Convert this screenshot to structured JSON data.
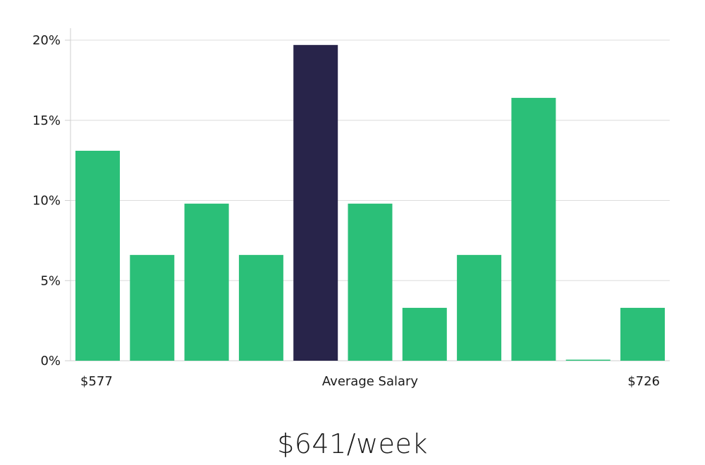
{
  "headline": "$641/week",
  "colors": {
    "bar": "#2bbf78",
    "bar_highlight": "#28244a",
    "grid": "#dcdcdc",
    "axis": "#cfcfcf"
  },
  "chart_data": {
    "type": "bar",
    "categories": [
      "",
      "",
      "",
      "",
      "",
      "",
      "",
      "",
      "",
      "",
      ""
    ],
    "values": [
      13.1,
      6.6,
      9.8,
      6.6,
      19.7,
      9.8,
      3.3,
      6.6,
      16.4,
      0.0,
      3.3
    ],
    "highlight_index": 4,
    "y_ticks": [
      "0%",
      "5%",
      "10%",
      "15%",
      "20%"
    ],
    "y_tick_values": [
      0,
      5,
      10,
      15,
      20
    ],
    "ylim": [
      0,
      20
    ],
    "x_min_label": "$577",
    "x_center_label": "Average Salary",
    "x_max_label": "$726",
    "grid": true,
    "legend": "none"
  }
}
